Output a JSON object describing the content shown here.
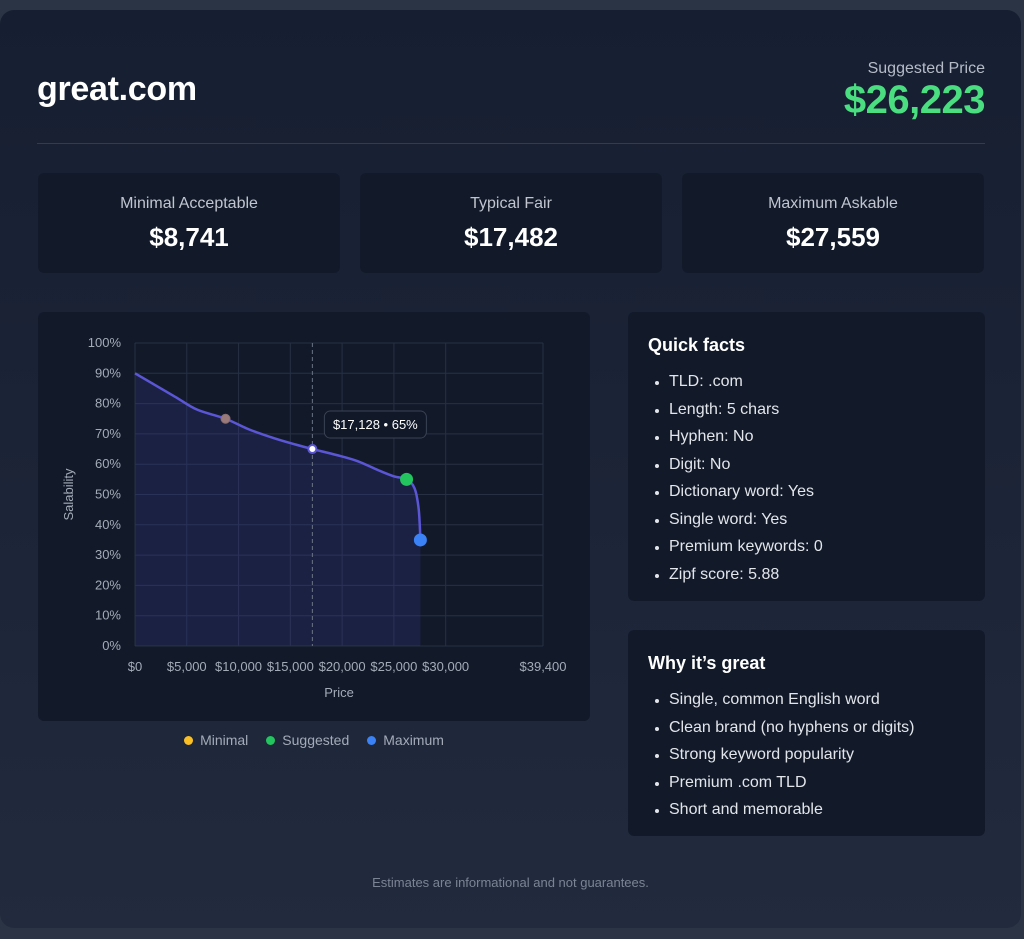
{
  "domain": "great.com",
  "suggested": {
    "label": "Suggested Price",
    "value": "$26,223"
  },
  "stats": [
    {
      "label": "Minimal Acceptable",
      "value": "$8,741"
    },
    {
      "label": "Typical Fair",
      "value": "$17,482"
    },
    {
      "label": "Maximum Askable",
      "value": "$27,559"
    }
  ],
  "chart_data": {
    "type": "line",
    "xlabel": "Price",
    "ylabel": "Salability",
    "xlim": [
      0,
      39400
    ],
    "ylim": [
      0,
      100
    ],
    "x_ticks": [
      {
        "v": 0,
        "label": "$0"
      },
      {
        "v": 5000,
        "label": "$5,000"
      },
      {
        "v": 10000,
        "label": "$10,000"
      },
      {
        "v": 15000,
        "label": "$15,000"
      },
      {
        "v": 20000,
        "label": "$20,000"
      },
      {
        "v": 25000,
        "label": "$25,000"
      },
      {
        "v": 30000,
        "label": "$30,000"
      },
      {
        "v": 39400,
        "label": "$39,400"
      }
    ],
    "y_ticks": [
      {
        "v": 0,
        "label": "0%"
      },
      {
        "v": 10,
        "label": "10%"
      },
      {
        "v": 20,
        "label": "20%"
      },
      {
        "v": 30,
        "label": "30%"
      },
      {
        "v": 40,
        "label": "40%"
      },
      {
        "v": 50,
        "label": "50%"
      },
      {
        "v": 60,
        "label": "60%"
      },
      {
        "v": 70,
        "label": "70%"
      },
      {
        "v": 80,
        "label": "80%"
      },
      {
        "v": 90,
        "label": "90%"
      },
      {
        "v": 100,
        "label": "100%"
      }
    ],
    "grid": true,
    "curve": [
      [
        0,
        90
      ],
      [
        2000,
        86
      ],
      [
        4000,
        82
      ],
      [
        6000,
        78
      ],
      [
        8741,
        75
      ],
      [
        11000,
        71.5
      ],
      [
        13500,
        68.5
      ],
      [
        15500,
        66.5
      ],
      [
        17128,
        65
      ],
      [
        19500,
        63
      ],
      [
        21500,
        61
      ],
      [
        23500,
        58
      ],
      [
        25000,
        56
      ],
      [
        26223,
        55
      ],
      [
        27000,
        52
      ],
      [
        27400,
        45
      ],
      [
        27559,
        35
      ]
    ],
    "markers": [
      {
        "name": "Minimal",
        "x": 8741,
        "y": 75,
        "color": "#fbbf24"
      },
      {
        "name": "Suggested",
        "x": 26223,
        "y": 55,
        "color": "#22c55e"
      },
      {
        "name": "Maximum",
        "x": 27559,
        "y": 35,
        "color": "#3b82f6"
      }
    ],
    "hover": {
      "x": 17128,
      "y": 65,
      "label": "$17,128 • 65%"
    },
    "line_color": "#5b56d6",
    "legend_position": "bottom"
  },
  "quick_facts": {
    "title": "Quick facts",
    "items": [
      "TLD: .com",
      "Length: 5 chars",
      "Hyphen: No",
      "Digit: No",
      "Dictionary word: Yes",
      "Single word: Yes",
      "Premium keywords: 0",
      "Zipf score: 5.88"
    ]
  },
  "why": {
    "title": "Why it’s great",
    "items": [
      "Single, common English word",
      "Clean brand (no hyphens or digits)",
      "Strong keyword popularity",
      "Premium .com TLD",
      "Short and memorable"
    ]
  },
  "footer": "Estimates are informational and not guarantees."
}
